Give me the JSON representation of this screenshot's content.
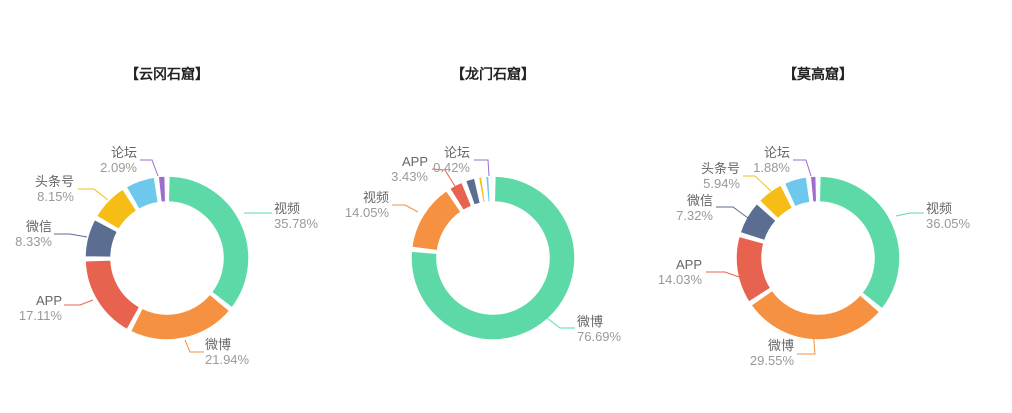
{
  "chart_data": [
    {
      "type": "pie",
      "variant": "donut",
      "title": "【云冈石窟】",
      "slices": [
        {
          "name": "视频",
          "value": 35.78,
          "label": "35.78%",
          "color": "#5cd9a6"
        },
        {
          "name": "微博",
          "value": 21.94,
          "label": "21.94%",
          "color": "#f59140"
        },
        {
          "name": "APP",
          "value": 17.11,
          "label": "17.11%",
          "color": "#e8634f"
        },
        {
          "name": "微信",
          "value": 8.33,
          "label": "8.33%",
          "color": "#5b6e91"
        },
        {
          "name": "头条号",
          "value": 8.15,
          "label": "8.15%",
          "color": "#f6bd16"
        },
        {
          "name": "",
          "value": 6.6,
          "label": "",
          "color": "#6dc8ec"
        },
        {
          "name": "论坛",
          "value": 2.09,
          "label": "2.09%",
          "color": "#9c6ccf"
        }
      ]
    },
    {
      "type": "pie",
      "variant": "donut",
      "title": "【龙门石窟】",
      "slices": [
        {
          "name": "微博",
          "value": 76.69,
          "label": "76.69%",
          "color": "#5cd9a6"
        },
        {
          "name": "视频",
          "value": 14.05,
          "label": "14.05%",
          "color": "#f59140"
        },
        {
          "name": "APP",
          "value": 3.43,
          "label": "3.43%",
          "color": "#e8634f"
        },
        {
          "name": "",
          "value": 2.6,
          "label": "",
          "color": "#5b6e91"
        },
        {
          "name": "",
          "value": 1.4,
          "label": "",
          "color": "#f6bd16"
        },
        {
          "name": "",
          "value": 1.4,
          "label": "",
          "color": "#6dc8ec"
        },
        {
          "name": "论坛",
          "value": 0.42,
          "label": "0.42%",
          "color": "#9c6ccf"
        }
      ]
    },
    {
      "type": "pie",
      "variant": "donut",
      "title": "【莫高窟】",
      "slices": [
        {
          "name": "视频",
          "value": 36.05,
          "label": "36.05%",
          "color": "#5cd9a6"
        },
        {
          "name": "微博",
          "value": 29.55,
          "label": "29.55%",
          "color": "#f59140"
        },
        {
          "name": "APP",
          "value": 14.03,
          "label": "14.03%",
          "color": "#e8634f"
        },
        {
          "name": "微信",
          "value": 7.32,
          "label": "7.32%",
          "color": "#5b6e91"
        },
        {
          "name": "头条号",
          "value": 5.94,
          "label": "5.94%",
          "color": "#f6bd16"
        },
        {
          "name": "",
          "value": 5.23,
          "label": "",
          "color": "#6dc8ec"
        },
        {
          "name": "论坛",
          "value": 1.88,
          "label": "1.88%",
          "color": "#9c6ccf"
        }
      ]
    }
  ]
}
